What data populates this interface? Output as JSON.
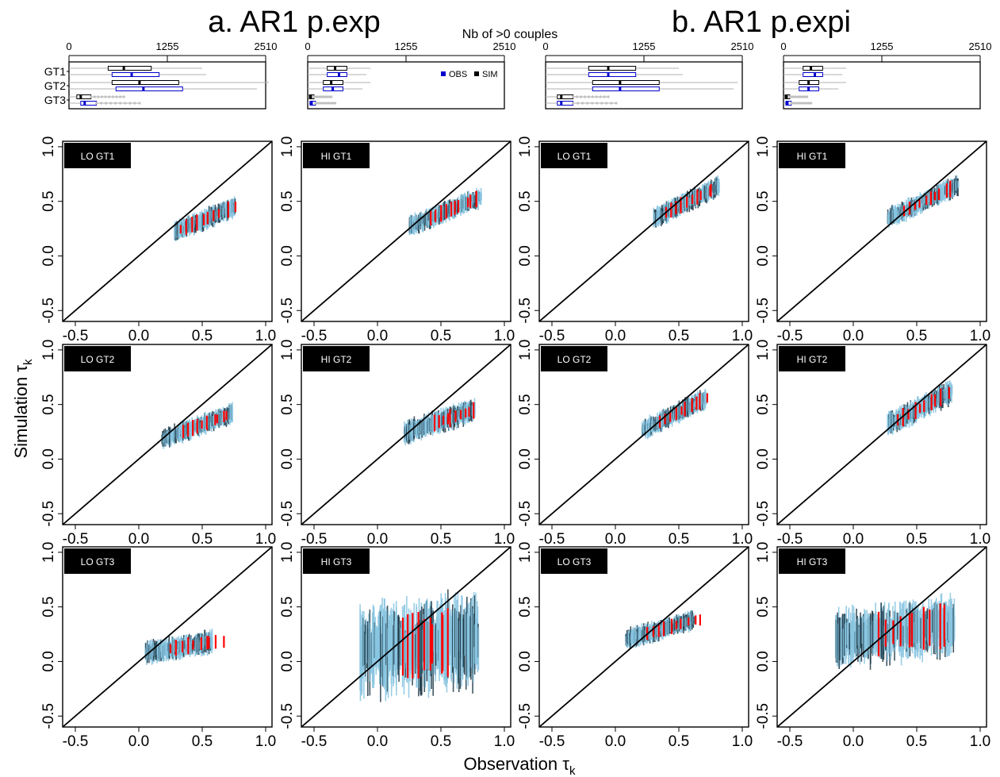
{
  "titles": {
    "a": "a. AR1 p.exp",
    "b": "b. AR1 p.expi",
    "top_axis": "Nb of >0 couples",
    "ylabel_main": "Simulation",
    "ylabel_sub": "k",
    "xlabel_main": "Observation",
    "xlabel_sub": "k",
    "tau": "τ"
  },
  "chart_data": [
    {
      "type": "boxplot",
      "title": "a. AR1 p.exp — LO",
      "xlabel": "Nb of >0 couples",
      "xticks": [
        0,
        1255,
        2510
      ],
      "xlim": [
        0,
        2510
      ],
      "legend": [
        "OBS",
        "SIM"
      ],
      "groups": [
        "GT1",
        "GT2",
        "GT3"
      ],
      "boxes": [
        {
          "group": "GT1",
          "series": "SIM",
          "min": 0,
          "q1": 500,
          "median": 700,
          "q3": 1050,
          "max": 1700
        },
        {
          "group": "GT1",
          "series": "OBS",
          "min": 0,
          "q1": 550,
          "median": 800,
          "q3": 1150,
          "max": 1750
        },
        {
          "group": "GT2",
          "series": "SIM",
          "min": 0,
          "q1": 550,
          "median": 900,
          "q3": 1400,
          "max": 2550
        },
        {
          "group": "GT2",
          "series": "OBS",
          "min": 0,
          "q1": 600,
          "median": 950,
          "q3": 1450,
          "max": 2400
        },
        {
          "group": "GT3",
          "series": "SIM",
          "min": 0,
          "q1": 100,
          "median": 150,
          "q3": 280,
          "max": 700
        },
        {
          "group": "GT3",
          "series": "OBS",
          "min": 0,
          "q1": 150,
          "median": 200,
          "q3": 350,
          "max": 900
        }
      ]
    },
    {
      "type": "boxplot",
      "title": "a. AR1 p.exp — HI",
      "xlabel": "Nb of >0 couples",
      "xticks": [
        0,
        1255,
        2510
      ],
      "xlim": [
        0,
        2510
      ],
      "legend": [
        "OBS",
        "SIM"
      ],
      "groups": [
        "GT1",
        "GT2",
        "GT3"
      ],
      "boxes": [
        {
          "group": "GT1",
          "series": "SIM",
          "min": 0,
          "q1": 250,
          "median": 350,
          "q3": 500,
          "max": 800
        },
        {
          "group": "GT1",
          "series": "OBS",
          "min": 0,
          "q1": 250,
          "median": 400,
          "q3": 500,
          "max": 750
        },
        {
          "group": "GT2",
          "series": "SIM",
          "min": 0,
          "q1": 200,
          "median": 300,
          "q3": 450,
          "max": 800
        },
        {
          "group": "GT2",
          "series": "OBS",
          "min": 0,
          "q1": 200,
          "median": 320,
          "q3": 450,
          "max": 700
        },
        {
          "group": "GT3",
          "series": "SIM",
          "min": 0,
          "q1": 20,
          "median": 40,
          "q3": 80,
          "max": 300
        },
        {
          "group": "GT3",
          "series": "OBS",
          "min": 0,
          "q1": 30,
          "median": 50,
          "q3": 100,
          "max": 350
        }
      ]
    },
    {
      "type": "boxplot",
      "title": "b. AR1 p.expi — LO",
      "xlabel": "Nb of >0 couples",
      "xticks": [
        0,
        1255,
        2510
      ],
      "xlim": [
        0,
        2510
      ],
      "groups": [
        "GT1",
        "GT2",
        "GT3"
      ],
      "boxes": [
        {
          "group": "GT1",
          "series": "SIM",
          "min": 0,
          "q1": 550,
          "median": 800,
          "q3": 1150,
          "max": 1700
        },
        {
          "group": "GT1",
          "series": "OBS",
          "min": 0,
          "q1": 550,
          "median": 800,
          "q3": 1150,
          "max": 1750
        },
        {
          "group": "GT2",
          "series": "SIM",
          "min": 0,
          "q1": 600,
          "median": 950,
          "q3": 1450,
          "max": 2450
        },
        {
          "group": "GT2",
          "series": "OBS",
          "min": 0,
          "q1": 600,
          "median": 950,
          "q3": 1450,
          "max": 2400
        },
        {
          "group": "GT3",
          "series": "SIM",
          "min": 0,
          "q1": 150,
          "median": 200,
          "q3": 350,
          "max": 800
        },
        {
          "group": "GT3",
          "series": "OBS",
          "min": 0,
          "q1": 150,
          "median": 200,
          "q3": 350,
          "max": 900
        }
      ]
    },
    {
      "type": "boxplot",
      "title": "b. AR1 p.expi — HI",
      "xlabel": "Nb of >0 couples",
      "xticks": [
        0,
        1255,
        2510
      ],
      "xlim": [
        0,
        2510
      ],
      "groups": [
        "GT1",
        "GT2",
        "GT3"
      ],
      "boxes": [
        {
          "group": "GT1",
          "series": "SIM",
          "min": 0,
          "q1": 250,
          "median": 350,
          "q3": 500,
          "max": 800
        },
        {
          "group": "GT1",
          "series": "OBS",
          "min": 0,
          "q1": 250,
          "median": 400,
          "q3": 500,
          "max": 750
        },
        {
          "group": "GT2",
          "series": "SIM",
          "min": 0,
          "q1": 200,
          "median": 320,
          "q3": 450,
          "max": 800
        },
        {
          "group": "GT2",
          "series": "OBS",
          "min": 0,
          "q1": 200,
          "median": 320,
          "q3": 450,
          "max": 700
        },
        {
          "group": "GT3",
          "series": "SIM",
          "min": 0,
          "q1": 20,
          "median": 40,
          "q3": 80,
          "max": 300
        },
        {
          "group": "GT3",
          "series": "OBS",
          "min": 0,
          "q1": 30,
          "median": 50,
          "q3": 100,
          "max": 350
        }
      ]
    },
    {
      "type": "scatter-range-grid",
      "xlabel": "Observation τk",
      "ylabel": "Simulation τk",
      "xlim": [
        -0.6,
        1.05
      ],
      "ylim": [
        -0.6,
        1.05
      ],
      "xticks": [
        "-0.5",
        "0.0",
        "0.5",
        "1.0"
      ],
      "yticks": [
        "-0.5",
        "0.0",
        "0.5",
        "1.0"
      ],
      "reference_line": "y = x",
      "series_colors": {
        "range": "#87c4e0",
        "dark": "#1e3a48",
        "highlight": "#ff0000"
      },
      "panels": [
        {
          "label": "LO GT1",
          "x_range": [
            0.28,
            0.76
          ],
          "y_center": [
            0.22,
            0.45
          ],
          "y_spread": 0.07,
          "red_x": [
            0.33,
            0.78
          ]
        },
        {
          "label": "HI GT1",
          "x_range": [
            0.25,
            0.82
          ],
          "y_center": [
            0.27,
            0.54
          ],
          "y_spread": 0.07,
          "red_x": [
            0.42,
            0.8
          ]
        },
        {
          "label": "LO GT1",
          "x_range": [
            0.3,
            0.82
          ],
          "y_center": [
            0.34,
            0.64
          ],
          "y_spread": 0.07,
          "red_x": [
            0.4,
            0.8
          ]
        },
        {
          "label": "HI GT1",
          "x_range": [
            0.27,
            0.83
          ],
          "y_center": [
            0.34,
            0.65
          ],
          "y_spread": 0.07,
          "red_x": [
            0.4,
            0.8
          ]
        },
        {
          "label": "LO GT2",
          "x_range": [
            0.18,
            0.74
          ],
          "y_center": [
            0.18,
            0.42
          ],
          "y_spread": 0.07,
          "red_x": [
            0.35,
            0.74
          ]
        },
        {
          "label": "HI GT2",
          "x_range": [
            0.21,
            0.77
          ],
          "y_center": [
            0.24,
            0.45
          ],
          "y_spread": 0.08,
          "red_x": [
            0.45,
            0.77
          ]
        },
        {
          "label": "LO GT2",
          "x_range": [
            0.21,
            0.72
          ],
          "y_center": [
            0.26,
            0.56
          ],
          "y_spread": 0.07,
          "red_x": [
            0.35,
            0.75
          ]
        },
        {
          "label": "HI GT2",
          "x_range": [
            0.27,
            0.78
          ],
          "y_center": [
            0.31,
            0.62
          ],
          "y_spread": 0.08,
          "red_x": [
            0.35,
            0.78
          ]
        },
        {
          "label": "LO GT3",
          "x_range": [
            0.05,
            0.58
          ],
          "y_center": [
            0.08,
            0.18
          ],
          "y_spread": 0.08,
          "red_x": [
            0.25,
            0.69
          ]
        },
        {
          "label": "HI GT3",
          "x_range": [
            -0.14,
            0.8
          ],
          "y_center": [
            0.1,
            0.2
          ],
          "y_spread": 0.32,
          "red_x": [
            0.2,
            0.6
          ]
        },
        {
          "label": "LO GT3",
          "x_range": [
            0.08,
            0.62
          ],
          "y_center": [
            0.2,
            0.38
          ],
          "y_spread": 0.07,
          "red_x": [
            0.25,
            0.7
          ]
        },
        {
          "label": "HI GT3",
          "x_range": [
            -0.14,
            0.8
          ],
          "y_center": [
            0.2,
            0.34
          ],
          "y_spread": 0.2,
          "red_x": [
            0.2,
            0.75
          ]
        }
      ]
    }
  ]
}
